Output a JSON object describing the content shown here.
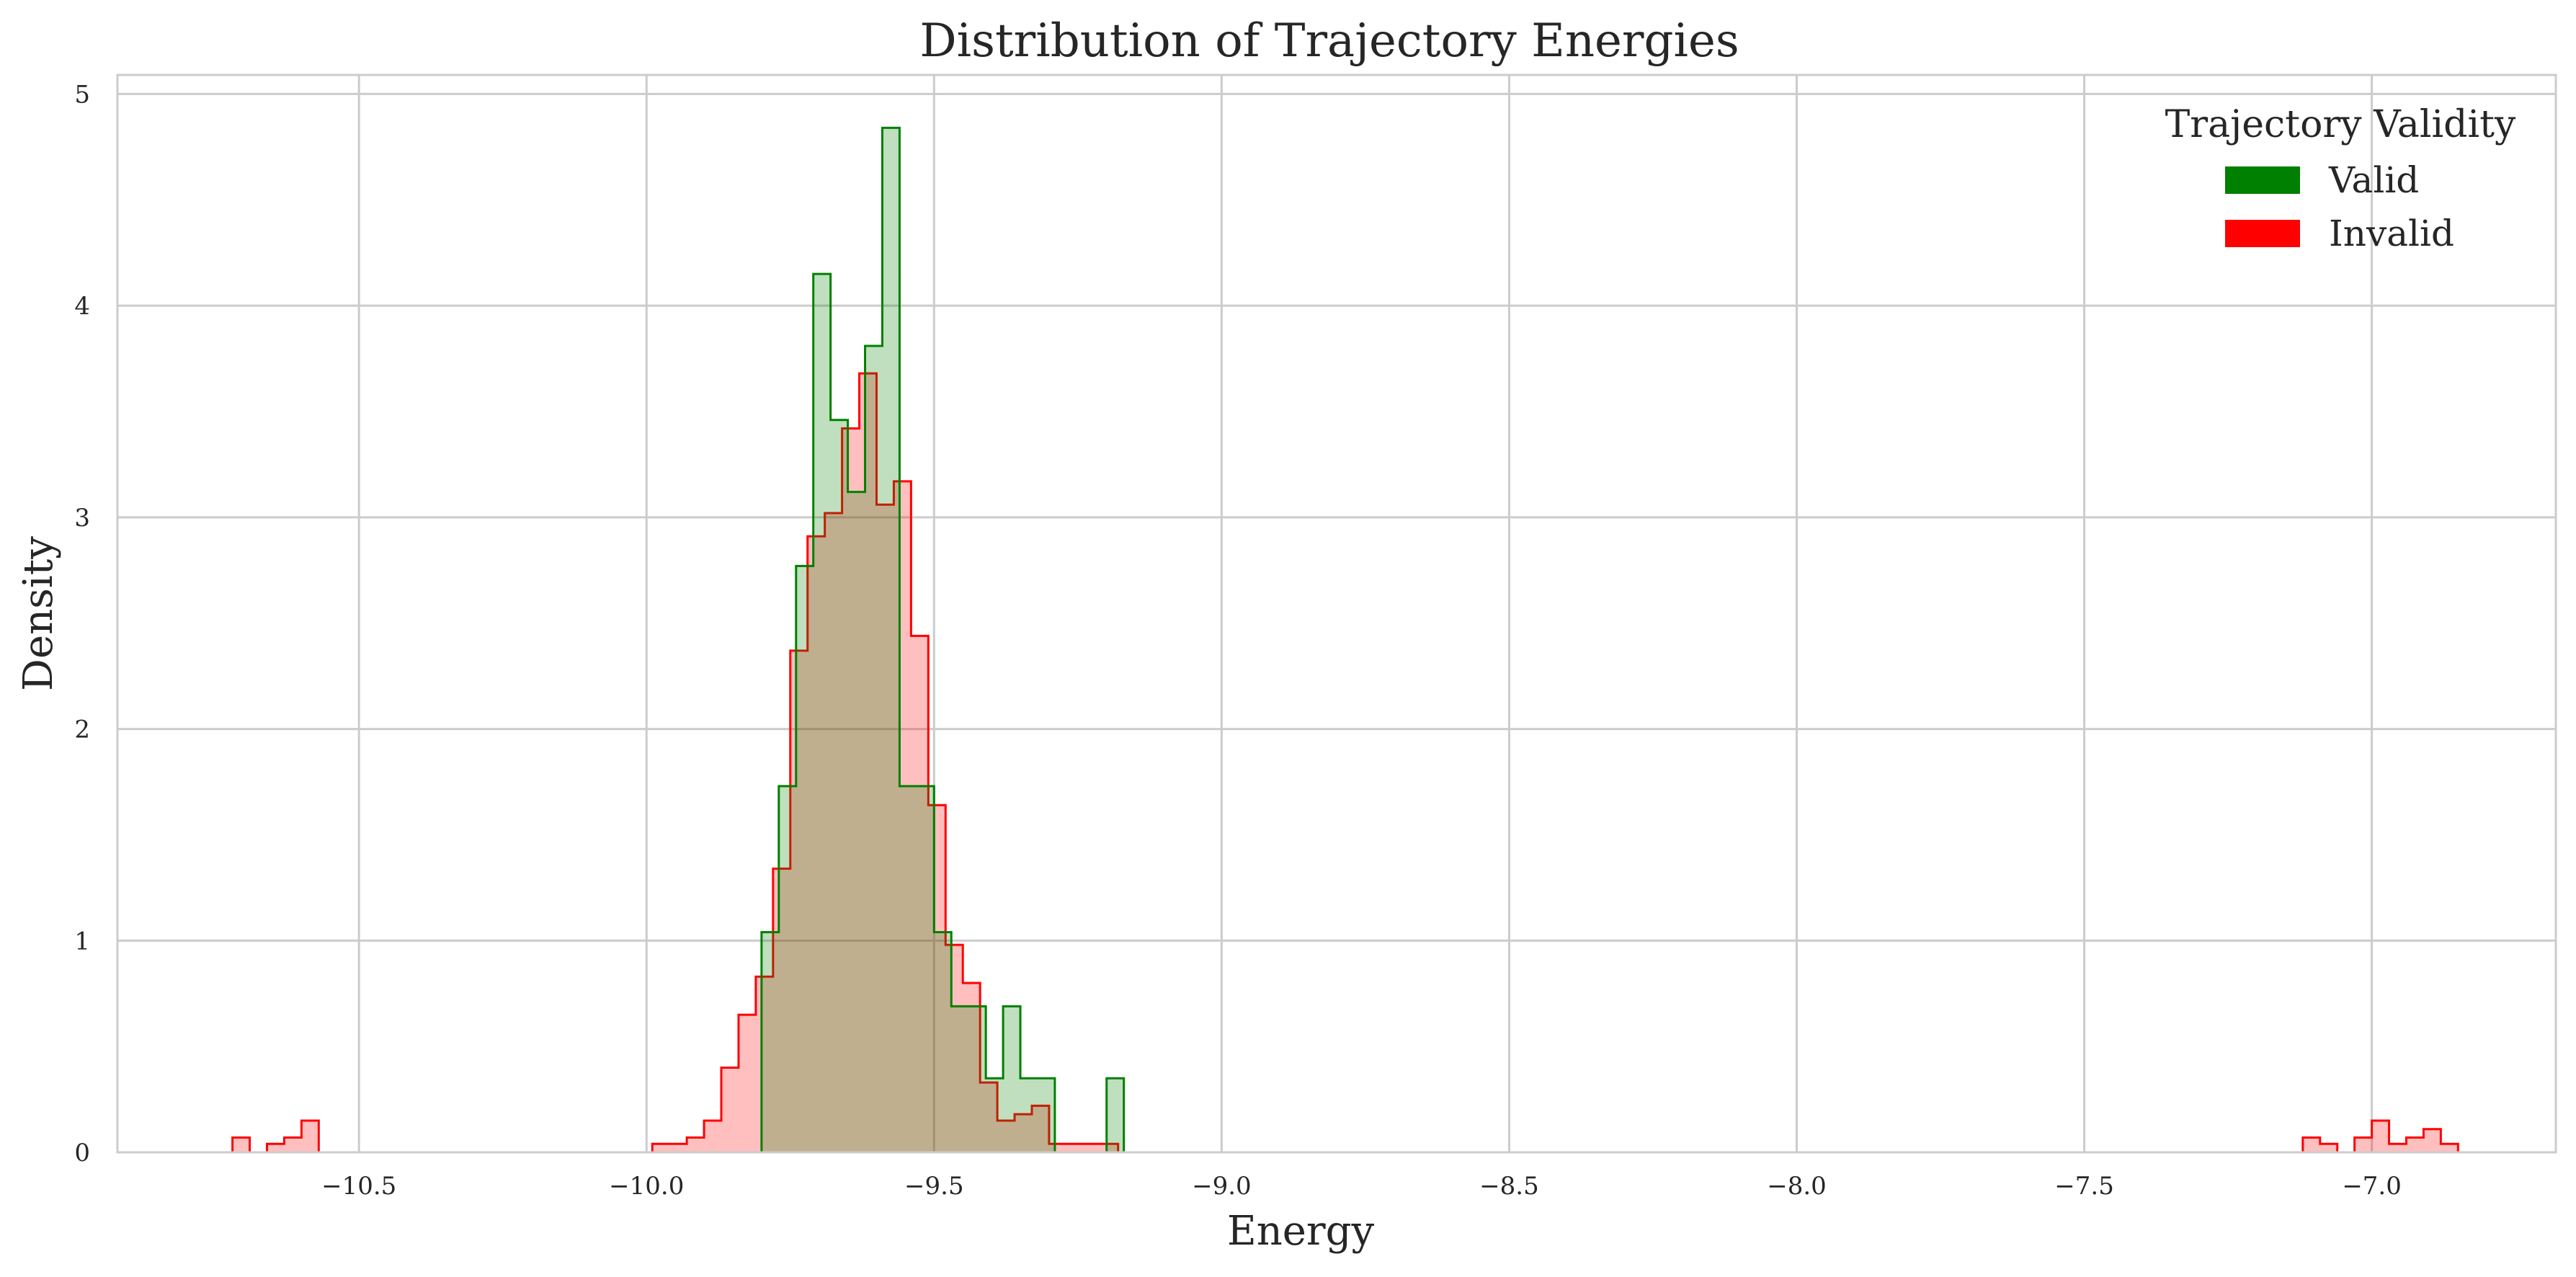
{
  "chart_data": {
    "type": "histogram",
    "title": "Distribution of Trajectory Energies",
    "xlabel": "Energy",
    "ylabel": "Density",
    "xlim": [
      -10.92,
      -6.68
    ],
    "ylim": [
      0,
      5.09
    ],
    "x_ticks": [
      -10.5,
      -10.0,
      -9.5,
      -9.0,
      -8.5,
      -8.0,
      -7.5,
      -7.0
    ],
    "x_tick_labels": [
      "−10.5",
      "−10.0",
      "−9.5",
      "−9.0",
      "−8.5",
      "−8.0",
      "−7.5",
      "−7.0"
    ],
    "y_ticks": [
      0,
      1,
      2,
      3,
      4,
      5
    ],
    "y_tick_labels": [
      "0",
      "1",
      "2",
      "3",
      "4",
      "5"
    ],
    "grid": true,
    "legend": {
      "title": "Trajectory Validity",
      "placement": "top-right"
    },
    "bin_width": 0.03,
    "series": [
      {
        "name": "Valid",
        "line_color": "#008000",
        "fill_color": "rgba(0,128,0,0.25)",
        "legend_color": "#008000",
        "bins_start": -9.8,
        "values": [
          1.04,
          1.73,
          2.77,
          4.15,
          3.46,
          3.12,
          3.81,
          4.84,
          1.73,
          1.73,
          1.04,
          0.69,
          0.69,
          0.35,
          0.69,
          0.35,
          0.35,
          0,
          0,
          0,
          0.35
        ]
      },
      {
        "name": "Invalid",
        "line_color": "#ff0000",
        "fill_color": "rgba(255,0,0,0.25)",
        "legend_color": "#ff0000",
        "segments": [
          {
            "start": -10.72,
            "values": [
              0.07,
              0,
              0.04,
              0.07,
              0.15
            ]
          },
          {
            "start": -9.99,
            "values": [
              0.04,
              0.04,
              0.07,
              0.15,
              0.4,
              0.65,
              0.83,
              1.34,
              2.37,
              2.91,
              3.02,
              3.42,
              3.68,
              3.06,
              3.17,
              2.44,
              1.64,
              0.98,
              0.8,
              0.33,
              0.15,
              0.18,
              0.22,
              0.04,
              0.04,
              0.04,
              0.04
            ]
          },
          {
            "start": -7.12,
            "values": [
              0.07,
              0.04,
              0,
              0.07,
              0.15,
              0.04,
              0.07,
              0.11,
              0.04
            ]
          }
        ]
      }
    ]
  }
}
